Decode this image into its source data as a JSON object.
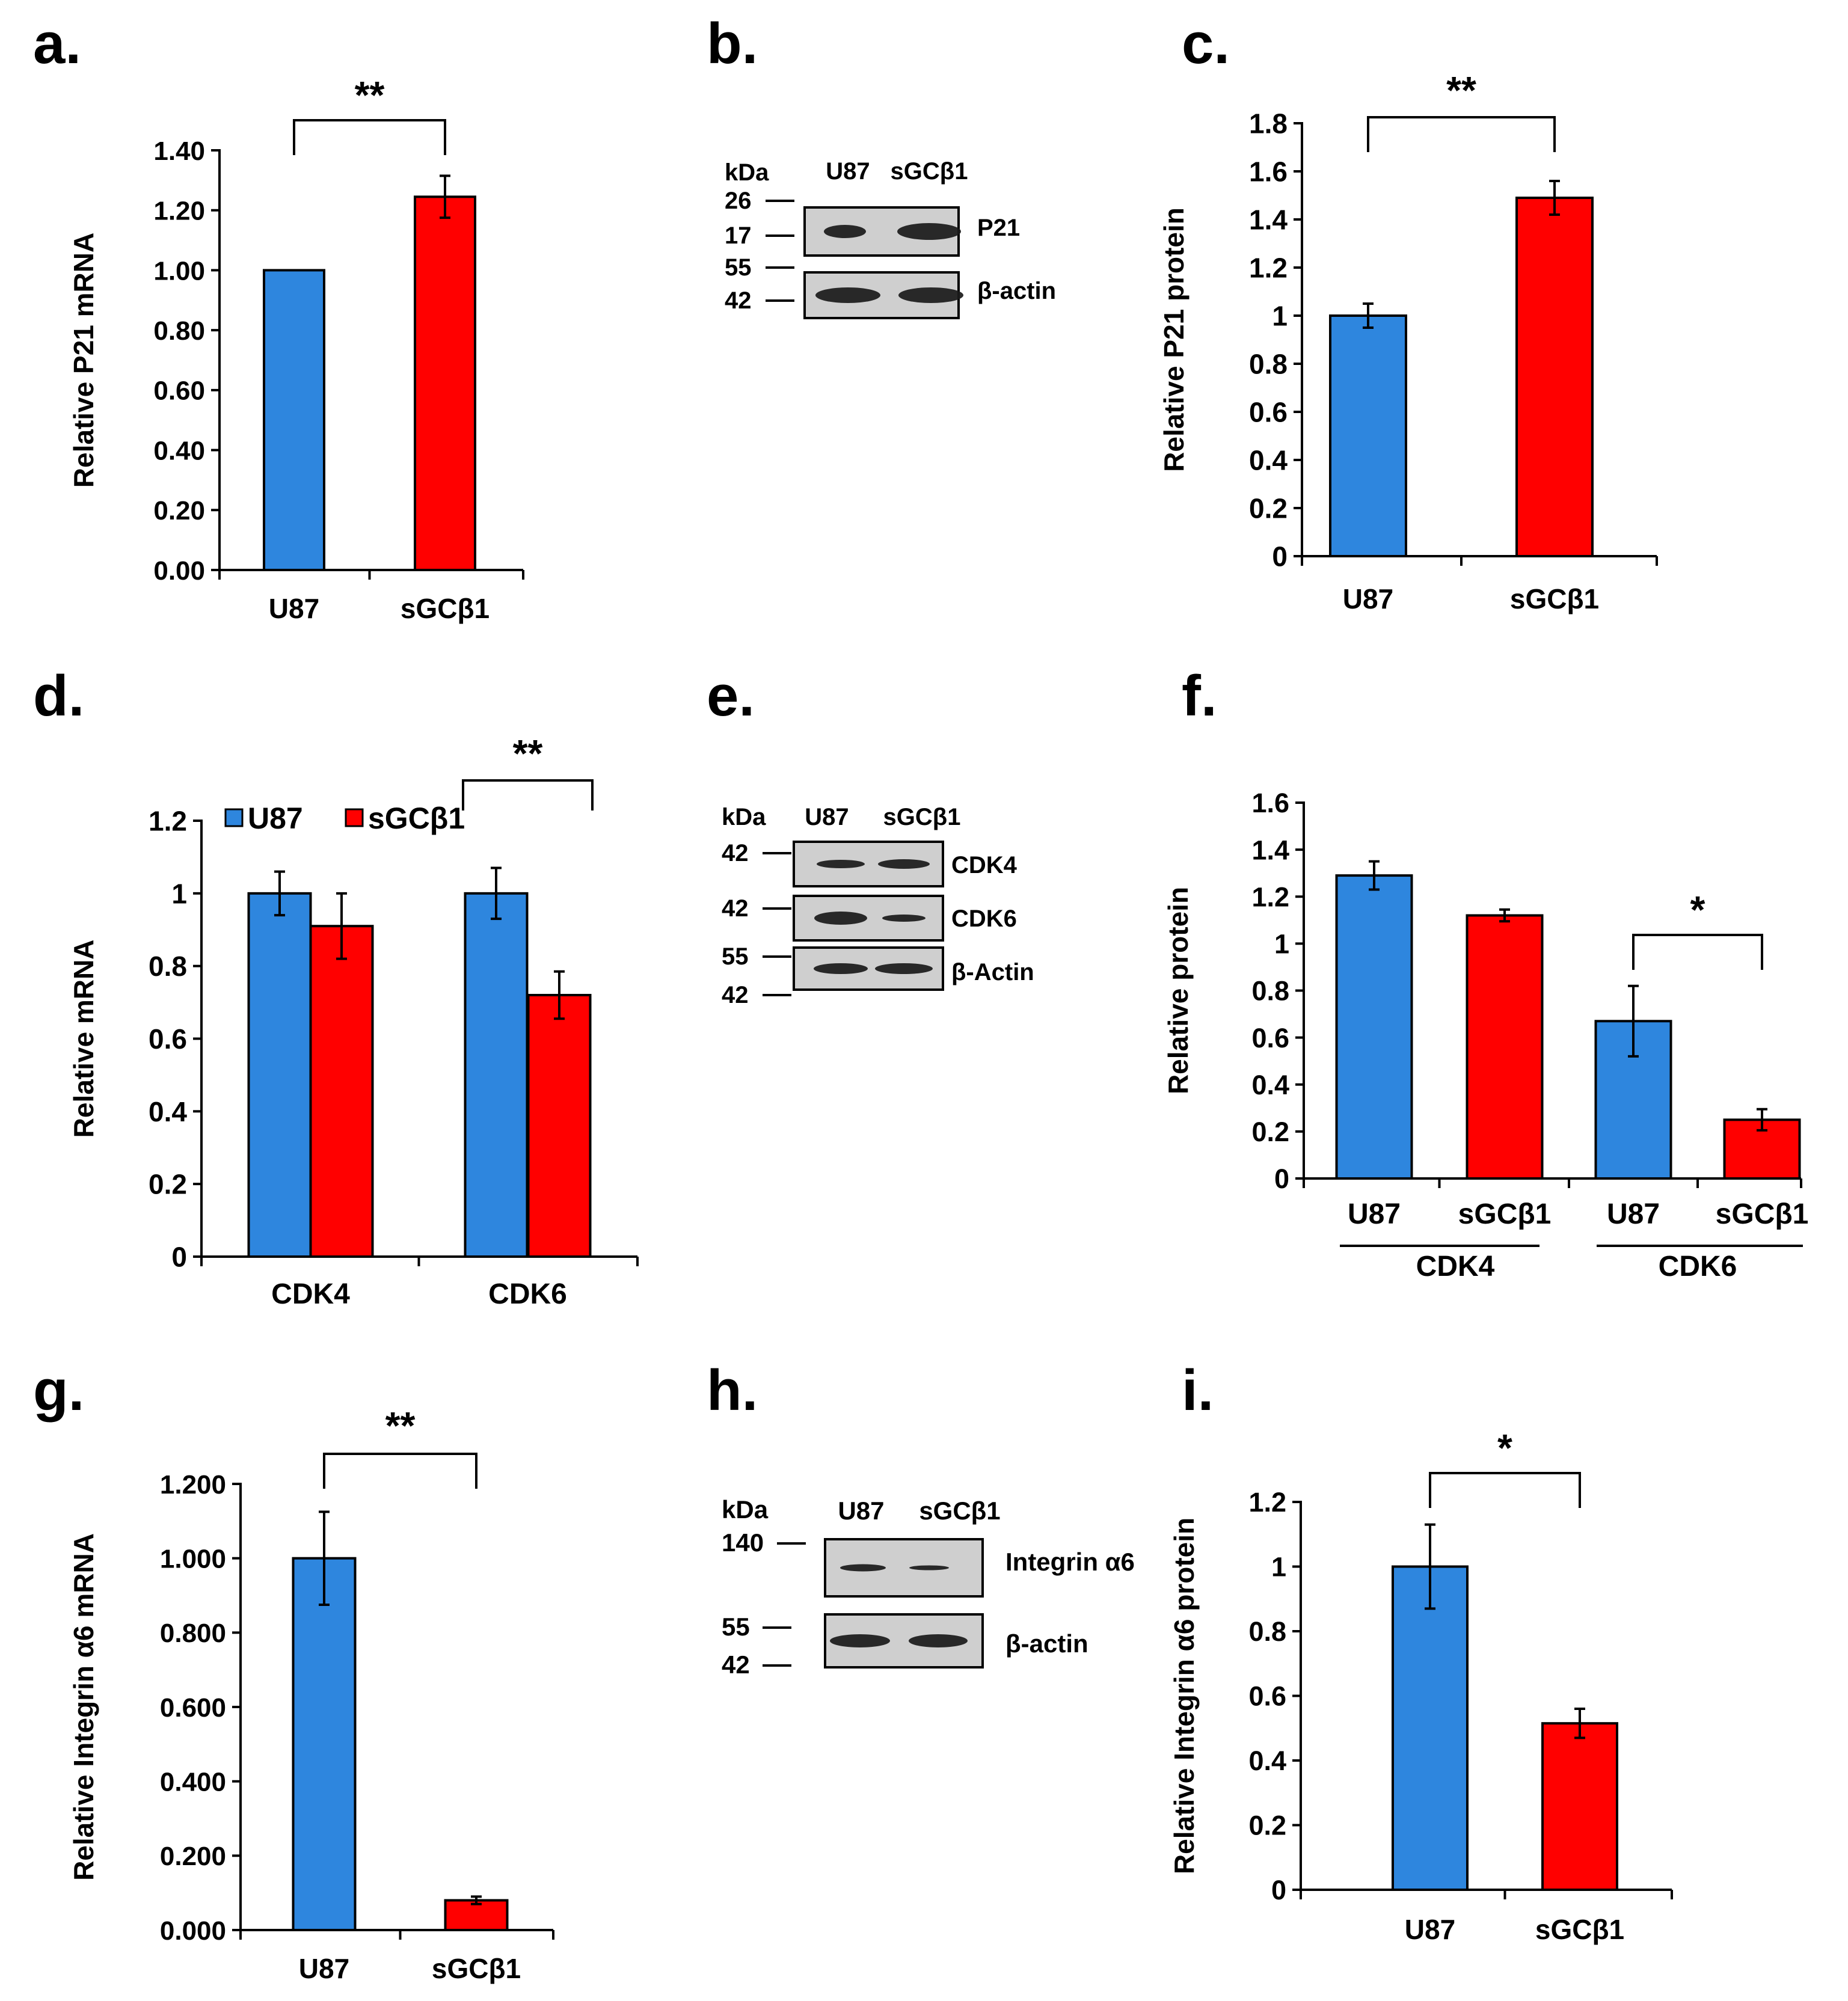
{
  "colors": {
    "u87": "#2e86de",
    "sgc": "#ff0000",
    "axis": "#000000",
    "blot_bg": "#cfcfcf",
    "band": "#1a1a1a"
  },
  "chart_data": [
    {
      "panel": "a",
      "label": "a.",
      "type": "bar",
      "ylabel": "Relative P21 mRNA",
      "categories": [
        "U87",
        "sGCβ1"
      ],
      "series": [
        {
          "name": "P21 mRNA",
          "values": [
            1.0,
            1.245
          ],
          "errors": [
            0,
            0.07
          ],
          "colors": [
            "#2e86de",
            "#ff0000"
          ]
        }
      ],
      "ylim": [
        0,
        1.4
      ],
      "yticks": [
        0,
        0.2,
        0.4,
        0.6,
        0.8,
        1.0,
        1.2,
        1.4
      ],
      "ytick_labels": [
        "0.00",
        "0.20",
        "0.40",
        "0.60",
        "0.80",
        "1.00",
        "1.20",
        "1.40"
      ],
      "significance": [
        {
          "from": "U87",
          "to": "sGCβ1",
          "label": "**"
        }
      ]
    },
    {
      "panel": "c",
      "label": "c.",
      "type": "bar",
      "ylabel": "Relative P21 protein",
      "categories": [
        "U87",
        "sGCβ1"
      ],
      "series": [
        {
          "name": "P21 protein",
          "values": [
            1.0,
            1.49
          ],
          "errors": [
            0.05,
            0.07
          ],
          "colors": [
            "#2e86de",
            "#ff0000"
          ]
        }
      ],
      "ylim": [
        0,
        1.8
      ],
      "yticks": [
        0,
        0.2,
        0.4,
        0.6,
        0.8,
        1.0,
        1.2,
        1.4,
        1.6,
        1.8
      ],
      "ytick_labels": [
        "0",
        "0.2",
        "0.4",
        "0.6",
        "0.8",
        "1",
        "1.2",
        "1.4",
        "1.6",
        "1.8"
      ],
      "significance": [
        {
          "from": "U87",
          "to": "sGCβ1",
          "label": "**"
        }
      ]
    },
    {
      "panel": "d",
      "label": "d.",
      "type": "bar",
      "ylabel": "Relative mRNA",
      "categories": [
        "CDK4",
        "CDK6"
      ],
      "series": [
        {
          "name": "U87",
          "values": [
            1.0,
            1.0
          ],
          "errors": [
            0.06,
            0.07
          ],
          "color": "#2e86de"
        },
        {
          "name": "sGCβ1",
          "values": [
            0.91,
            0.72
          ],
          "errors": [
            0.09,
            0.065
          ],
          "color": "#ff0000"
        }
      ],
      "ylim": [
        0,
        1.2
      ],
      "yticks": [
        0,
        0.2,
        0.4,
        0.6,
        0.8,
        1.0,
        1.2
      ],
      "ytick_labels": [
        "0",
        "0.2",
        "0.4",
        "0.6",
        "0.8",
        "1",
        "1.2"
      ],
      "legend": [
        "U87",
        "sGCβ1"
      ],
      "significance": [
        {
          "category": "CDK6",
          "label": "**"
        }
      ]
    },
    {
      "panel": "f",
      "label": "f.",
      "type": "bar",
      "ylabel": "Relative protein",
      "categories": [
        "U87",
        "sGCβ1",
        "U87",
        "sGCβ1"
      ],
      "groups": [
        {
          "label": "CDK4"
        },
        {
          "label": "CDK6"
        }
      ],
      "series": [
        {
          "name": "Relative protein",
          "values": [
            1.29,
            1.12,
            0.67,
            0.25
          ],
          "errors": [
            0.06,
            0.025,
            0.15,
            0.045
          ],
          "colors": [
            "#2e86de",
            "#ff0000",
            "#2e86de",
            "#ff0000"
          ]
        }
      ],
      "ylim": [
        0,
        1.6
      ],
      "yticks": [
        0,
        0.2,
        0.4,
        0.6,
        0.8,
        1.0,
        1.2,
        1.4,
        1.6
      ],
      "ytick_labels": [
        "0",
        "0.2",
        "0.4",
        "0.6",
        "0.8",
        "1",
        "1.2",
        "1.4",
        "1.6"
      ],
      "significance": [
        {
          "from": 2,
          "to": 3,
          "label": "*"
        }
      ]
    },
    {
      "panel": "g",
      "label": "g.",
      "type": "bar",
      "ylabel": "Relative Integrin α6 mRNA",
      "categories": [
        "U87",
        "sGCβ1"
      ],
      "series": [
        {
          "name": "Integrin α6 mRNA",
          "values": [
            1.0,
            0.08
          ],
          "errors": [
            0.125,
            0.01
          ],
          "colors": [
            "#2e86de",
            "#ff0000"
          ]
        }
      ],
      "ylim": [
        0,
        1.2
      ],
      "yticks": [
        0,
        0.2,
        0.4,
        0.6,
        0.8,
        1.0,
        1.2
      ],
      "ytick_labels": [
        "0.000",
        "0.200",
        "0.400",
        "0.600",
        "0.800",
        "1.000",
        "1.200"
      ],
      "significance": [
        {
          "from": "U87",
          "to": "sGCβ1",
          "label": "**"
        }
      ]
    },
    {
      "panel": "i",
      "label": "i.",
      "type": "bar",
      "ylabel": "Relative Integrin α6 protein",
      "categories": [
        "U87",
        "sGCβ1"
      ],
      "series": [
        {
          "name": "Integrin α6 protein",
          "values": [
            1.0,
            0.515
          ],
          "errors": [
            0.13,
            0.045
          ],
          "colors": [
            "#2e86de",
            "#ff0000"
          ]
        }
      ],
      "ylim": [
        0,
        1.2
      ],
      "yticks": [
        0,
        0.2,
        0.4,
        0.6,
        0.8,
        1.0,
        1.2
      ],
      "ytick_labels": [
        "0",
        "0.2",
        "0.4",
        "0.6",
        "0.8",
        "1",
        "1.2"
      ],
      "significance": [
        {
          "from": "U87",
          "to": "sGCβ1",
          "label": "*"
        }
      ]
    }
  ],
  "blots": [
    {
      "panel": "b",
      "label": "b.",
      "unit": "kDa",
      "lanes": [
        "U87",
        "sGCβ1"
      ],
      "membranes": [
        {
          "target": "P21",
          "markers": [
            "26",
            "17"
          ]
        },
        {
          "target": "β-actin",
          "markers": [
            "55",
            "42"
          ]
        }
      ]
    },
    {
      "panel": "e",
      "label": "e.",
      "unit": "kDa",
      "lanes": [
        "U87",
        "sGCβ1"
      ],
      "membranes": [
        {
          "target": "CDK4",
          "markers": [
            "42"
          ]
        },
        {
          "target": "CDK6",
          "markers": [
            "42"
          ]
        },
        {
          "target": "β-Actin",
          "markers": [
            "55",
            "42"
          ]
        }
      ]
    },
    {
      "panel": "h",
      "label": "h.",
      "unit": "kDa",
      "lanes": [
        "U87",
        "sGCβ1"
      ],
      "membranes": [
        {
          "target": "Integrin α6",
          "markers": [
            "140"
          ]
        },
        {
          "target": "β-actin",
          "markers": [
            "55",
            "42"
          ]
        }
      ]
    }
  ]
}
